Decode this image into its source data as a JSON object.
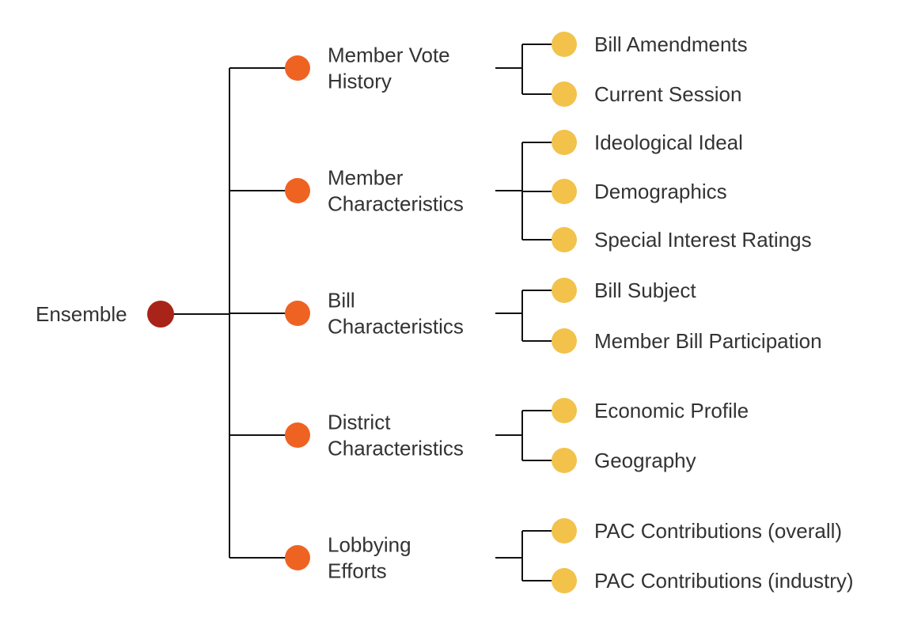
{
  "tree": {
    "root": {
      "label": "Ensemble",
      "color": "#A82418"
    },
    "branch_color": "#EF6322",
    "leaf_color": "#F2C24B",
    "line_color": "#111111",
    "text_color": "#333333",
    "branches": [
      {
        "label_lines": [
          "Member Vote",
          "History"
        ],
        "leaves": [
          "Bill Amendments",
          "Current Session"
        ]
      },
      {
        "label_lines": [
          "Member",
          "Characteristics"
        ],
        "leaves": [
          "Ideological Ideal",
          "Demographics",
          "Special Interest Ratings"
        ]
      },
      {
        "label_lines": [
          "Bill",
          "Characteristics"
        ],
        "leaves": [
          "Bill Subject",
          "Member Bill Participation"
        ]
      },
      {
        "label_lines": [
          "District",
          "Characteristics"
        ],
        "leaves": [
          "Economic Profile",
          "Geography"
        ]
      },
      {
        "label_lines": [
          "Lobbying",
          "Efforts"
        ],
        "leaves": [
          "PAC Contributions (overall)",
          "PAC Contributions (industry)"
        ]
      }
    ]
  }
}
